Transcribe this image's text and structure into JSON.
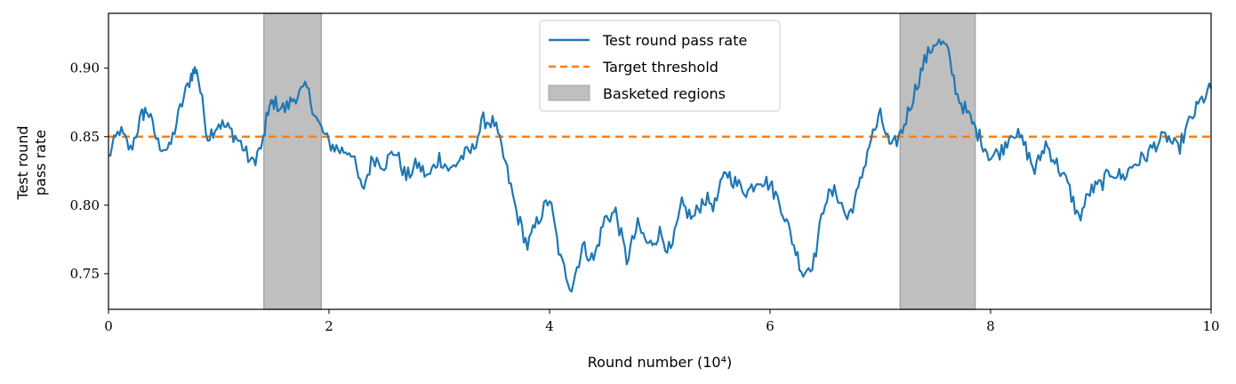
{
  "chart_data": {
    "type": "line",
    "xlabel": "Round number (10⁴)",
    "ylabel_lines": [
      "Test round",
      "pass rate"
    ],
    "xlim": [
      0,
      10
    ],
    "ylim": [
      0.724,
      0.94
    ],
    "x_ticks": [
      0,
      2,
      4,
      6,
      8,
      10
    ],
    "x_tick_labels": [
      "0",
      "2",
      "4",
      "6",
      "8",
      "10"
    ],
    "y_ticks": [
      0.75,
      0.8,
      0.85,
      0.9
    ],
    "y_tick_labels": [
      "0.75",
      "0.80",
      "0.85",
      "0.90"
    ],
    "grid": false,
    "legend_position": "top-center",
    "series": [
      {
        "name": "Test round pass rate",
        "color": "#1f77b4",
        "style": "solid",
        "x": [
          0,
          0.1,
          0.2,
          0.3,
          0.35,
          0.45,
          0.55,
          0.65,
          0.75,
          0.8,
          0.9,
          1.0,
          1.1,
          1.2,
          1.3,
          1.4,
          1.45,
          1.5,
          1.6,
          1.7,
          1.8,
          1.9,
          2.0,
          2.1,
          2.2,
          2.3,
          2.4,
          2.5,
          2.6,
          2.7,
          2.8,
          2.9,
          3.0,
          3.1,
          3.2,
          3.3,
          3.4,
          3.5,
          3.6,
          3.7,
          3.8,
          3.9,
          4.0,
          4.1,
          4.2,
          4.3,
          4.4,
          4.5,
          4.6,
          4.7,
          4.8,
          4.9,
          5.0,
          5.1,
          5.2,
          5.3,
          5.4,
          5.5,
          5.6,
          5.7,
          5.8,
          5.9,
          6.0,
          6.1,
          6.2,
          6.3,
          6.4,
          6.5,
          6.6,
          6.7,
          6.8,
          6.9,
          7.0,
          7.1,
          7.2,
          7.3,
          7.4,
          7.5,
          7.6,
          7.7,
          7.8,
          7.9,
          8.0,
          8.1,
          8.2,
          8.3,
          8.4,
          8.5,
          8.6,
          8.7,
          8.8,
          8.9,
          9.0,
          9.1,
          9.2,
          9.3,
          9.4,
          9.5,
          9.6,
          9.7,
          9.8,
          9.9,
          10.0
        ],
        "y": [
          0.835,
          0.855,
          0.84,
          0.865,
          0.87,
          0.845,
          0.84,
          0.87,
          0.895,
          0.9,
          0.85,
          0.86,
          0.855,
          0.845,
          0.83,
          0.845,
          0.87,
          0.875,
          0.87,
          0.88,
          0.885,
          0.86,
          0.845,
          0.84,
          0.84,
          0.81,
          0.835,
          0.83,
          0.84,
          0.82,
          0.83,
          0.82,
          0.835,
          0.825,
          0.835,
          0.84,
          0.862,
          0.86,
          0.83,
          0.795,
          0.77,
          0.79,
          0.805,
          0.76,
          0.74,
          0.77,
          0.76,
          0.79,
          0.795,
          0.76,
          0.785,
          0.77,
          0.78,
          0.765,
          0.8,
          0.79,
          0.805,
          0.8,
          0.825,
          0.815,
          0.81,
          0.82,
          0.815,
          0.8,
          0.775,
          0.75,
          0.76,
          0.805,
          0.81,
          0.79,
          0.81,
          0.845,
          0.865,
          0.84,
          0.855,
          0.88,
          0.905,
          0.92,
          0.915,
          0.88,
          0.865,
          0.85,
          0.835,
          0.84,
          0.855,
          0.845,
          0.825,
          0.845,
          0.83,
          0.815,
          0.79,
          0.81,
          0.815,
          0.825,
          0.82,
          0.83,
          0.835,
          0.845,
          0.85,
          0.84,
          0.86,
          0.875,
          0.885
        ]
      },
      {
        "name": "Target threshold",
        "color": "#ff7f0e",
        "style": "dashed",
        "value": 0.85
      }
    ],
    "shaded_regions": {
      "name": "Basketed regions",
      "color": "#bfbfbf",
      "ranges": [
        [
          1.41,
          1.93
        ],
        [
          7.18,
          7.86
        ]
      ]
    }
  }
}
